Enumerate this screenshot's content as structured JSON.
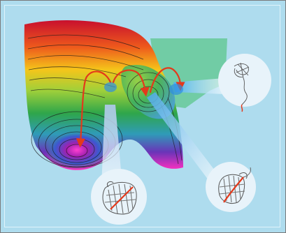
{
  "figure": {
    "background_color": "#aedcee",
    "border_color": "#7a7a7a",
    "surface_colors": [
      "#c8102e",
      "#f07b1a",
      "#f5d21a",
      "#7cc242",
      "#2fa64a",
      "#3b8fd0",
      "#b020a0",
      "#ff3fc0"
    ],
    "arrow_color": "#e3391b",
    "callout_color": "#e8f3fa",
    "insets": [
      {
        "name": "unfolded-protein"
      },
      {
        "name": "folded-barrel-protein"
      },
      {
        "name": "intermediate-barrel-protein"
      }
    ]
  }
}
